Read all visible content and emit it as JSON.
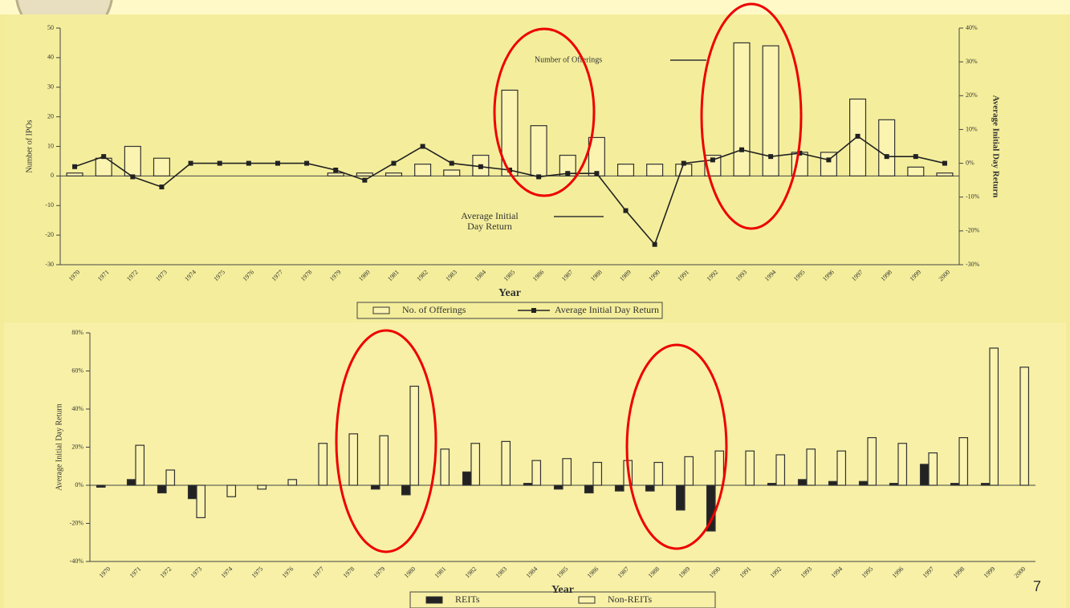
{
  "slide_number": "7",
  "chart_data": [
    {
      "type": "bar",
      "x_label": "Year",
      "y_label": "Number of IPOs",
      "y2_label": "Average Initial Day Return",
      "annotations": {
        "offerings": "Number of Offerings",
        "return": [
          "Average Initial",
          "Day Return"
        ]
      },
      "categories": [
        "1970",
        "1971",
        "1972",
        "1973",
        "1974",
        "1975",
        "1976",
        "1977",
        "1978",
        "1979",
        "1980",
        "1981",
        "1982",
        "1983",
        "1984",
        "1985",
        "1986",
        "1987",
        "1988",
        "1989",
        "1990",
        "1991",
        "1992",
        "1993",
        "1994",
        "1995",
        "1996",
        "1997",
        "1998",
        "1999",
        "2000"
      ],
      "series": [
        {
          "name": "No. of Offerings",
          "type": "bar",
          "color": "#fbf3b0",
          "values": [
            1,
            6,
            10,
            6,
            0,
            0,
            0,
            0,
            0,
            1,
            1,
            1,
            4,
            2,
            7,
            29,
            17,
            7,
            13,
            4,
            4,
            4,
            7,
            45,
            44,
            8,
            8,
            26,
            19,
            3,
            1
          ]
        },
        {
          "name": "Average Initial Day Return",
          "type": "line",
          "axis": "y2",
          "color": "#222222",
          "values": [
            -1,
            2,
            -4,
            -7,
            0,
            0,
            0,
            0,
            0,
            -2,
            -5,
            0,
            5,
            0,
            -1,
            -2,
            -4,
            -3,
            -3,
            -14,
            -24,
            0,
            1,
            4,
            2,
            3,
            1,
            8,
            2,
            2,
            0
          ]
        }
      ],
      "ylim": [
        -30,
        50
      ],
      "yticks": [
        -30,
        -20,
        -10,
        0,
        10,
        20,
        30,
        40,
        50
      ],
      "y2lim": [
        -30,
        40
      ],
      "y2ticks": [
        {
          "value": -30,
          "label": "-30%"
        },
        {
          "value": -20,
          "label": "-20%"
        },
        {
          "value": -10,
          "label": "-10%"
        },
        {
          "value": 0,
          "label": "0%"
        },
        {
          "value": 10,
          "label": "10%"
        },
        {
          "value": 20,
          "label": "20%"
        },
        {
          "value": 30,
          "label": "30%"
        },
        {
          "value": 40,
          "label": "40%"
        }
      ]
    },
    {
      "type": "bar",
      "x_label": "Year",
      "y_label": "Average Initial Day Return",
      "categories": [
        "1970",
        "1971",
        "1972",
        "1973",
        "1974",
        "1975",
        "1976",
        "1977",
        "1978",
        "1979",
        "1980",
        "1981",
        "1982",
        "1983",
        "1984",
        "1985",
        "1986",
        "1987",
        "1988",
        "1989",
        "1990",
        "1991",
        "1992",
        "1993",
        "1994",
        "1995",
        "1996",
        "1997",
        "1998",
        "1999",
        "2000"
      ],
      "series": [
        {
          "name": "REITs",
          "type": "bar",
          "color": "#222222",
          "values": [
            -1,
            3,
            -4,
            -7,
            0,
            0,
            0,
            0,
            0,
            -2,
            -5,
            0,
            7,
            0,
            1,
            -2,
            -4,
            -3,
            -3,
            -13,
            -24,
            0,
            1,
            3,
            2,
            2,
            1,
            11,
            1,
            1,
            0
          ]
        },
        {
          "name": "Non-REITs",
          "type": "bar",
          "color": "#fbf3b0",
          "values": [
            0,
            21,
            8,
            -17,
            -6,
            -2,
            3,
            22,
            27,
            26,
            52,
            19,
            22,
            23,
            13,
            14,
            12,
            13,
            12,
            15,
            18,
            18,
            16,
            19,
            18,
            25,
            22,
            17,
            25,
            72,
            62
          ]
        }
      ],
      "ylim": [
        -40,
        80
      ],
      "yticks": [
        {
          "value": -40,
          "label": "-40%"
        },
        {
          "value": -20,
          "label": "-20%"
        },
        {
          "value": 0,
          "label": "0%"
        },
        {
          "value": 20,
          "label": "20%"
        },
        {
          "value": 40,
          "label": "40%"
        },
        {
          "value": 60,
          "label": "60%"
        },
        {
          "value": 80,
          "label": "80%"
        }
      ]
    }
  ]
}
